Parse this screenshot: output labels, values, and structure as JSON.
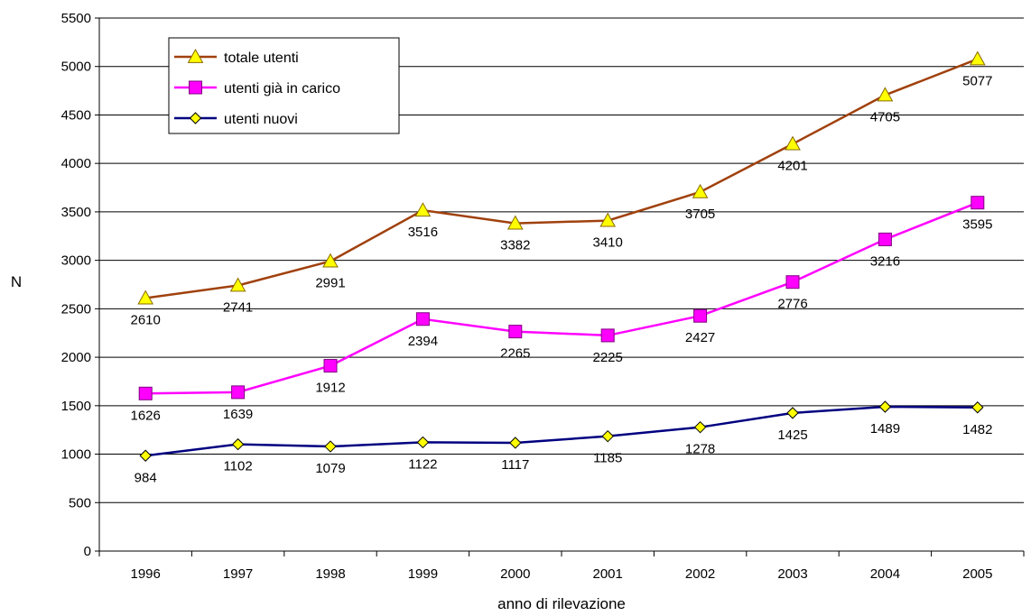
{
  "chart_data": {
    "type": "line",
    "title": "",
    "xlabel": "anno di rilevazione",
    "ylabel": "N",
    "categories": [
      "1996",
      "1997",
      "1998",
      "1999",
      "2000",
      "2001",
      "2002",
      "2003",
      "2004",
      "2005"
    ],
    "ylim": [
      0,
      5500
    ],
    "yticks": [
      0,
      500,
      1000,
      1500,
      2000,
      2500,
      3000,
      3500,
      4000,
      4500,
      5000,
      5500
    ],
    "grid": true,
    "legend_position": "top-left",
    "series": [
      {
        "name": "totale utenti",
        "color": "#A0410D",
        "marker": "triangle",
        "marker_fill": "#FFFF00",
        "values": [
          2610,
          2741,
          2991,
          3516,
          3382,
          3410,
          3705,
          4201,
          4705,
          5077
        ],
        "label_side": [
          "below",
          "below",
          "below",
          "below",
          "below",
          "below",
          "below",
          "below",
          "below",
          "below"
        ]
      },
      {
        "name": "utenti già in carico",
        "color": "#FF00FF",
        "marker": "square",
        "marker_fill": "#FF00FF",
        "values": [
          1626,
          1639,
          1912,
          2394,
          2265,
          2225,
          2427,
          2776,
          3216,
          3595
        ],
        "label_side": [
          "below",
          "below",
          "below",
          "below",
          "below",
          "below",
          "below",
          "below",
          "below",
          "below"
        ]
      },
      {
        "name": "utenti nuovi",
        "color": "#000080",
        "marker": "diamond",
        "marker_fill": "#FFFF00",
        "values": [
          984,
          1102,
          1079,
          1122,
          1117,
          1185,
          1278,
          1425,
          1489,
          1482
        ],
        "label_side": [
          "below",
          "below",
          "below",
          "below",
          "below",
          "below",
          "below",
          "below",
          "below",
          "below"
        ]
      }
    ]
  }
}
